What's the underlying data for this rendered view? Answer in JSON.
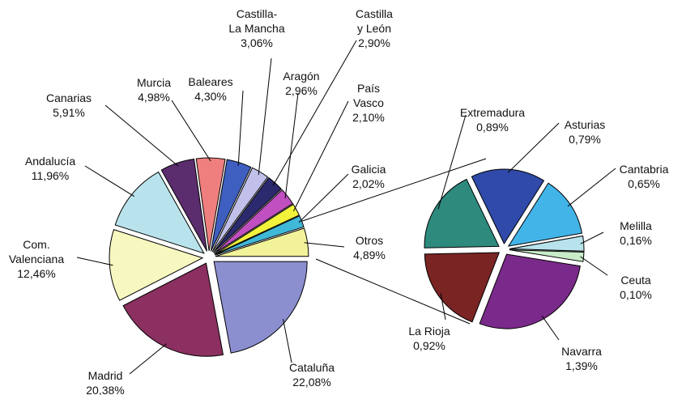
{
  "chart_data": [
    {
      "type": "pie",
      "categories": [
        "Cataluña",
        "Madrid",
        "Com.\nValenciana",
        "Andalucía",
        "Canarias",
        "Murcia",
        "Baleares",
        "Castilla-\nLa Mancha",
        "Castilla\ny León",
        "Aragón",
        "País\nVasco",
        "Galicia",
        "Otros"
      ],
      "values": [
        22.08,
        20.38,
        12.46,
        11.96,
        5.91,
        4.98,
        4.3,
        3.06,
        2.9,
        2.96,
        2.1,
        2.02,
        4.89
      ],
      "value_labels": [
        "22,08%",
        "20,38%",
        "12,46%",
        "11,96%",
        "5,91%",
        "4,98%",
        "4,30%",
        "3,06%",
        "2,90%",
        "2,96%",
        "2,10%",
        "2,02%",
        "4,89%"
      ],
      "colors": [
        "#8b8fd0",
        "#8b3060",
        "#f7f7c0",
        "#b9e3ec",
        "#5c2d6e",
        "#ef7f7f",
        "#3f5fc0",
        "#c0c0ea",
        "#2b2a6e",
        "#c04fc0",
        "#f2f23c",
        "#40b8d8",
        "#f2f29a"
      ]
    },
    {
      "type": "pie",
      "categories": [
        "Asturias",
        "Cantabria",
        "Melilla",
        "Ceuta",
        "Navarra",
        "La Rioja",
        "Extremadura"
      ],
      "values": [
        0.79,
        0.65,
        0.16,
        0.1,
        1.39,
        0.92,
        0.89
      ],
      "value_labels": [
        "0,79%",
        "0,65%",
        "0,16%",
        "0,10%",
        "1,39%",
        "0,92%",
        "0,89%"
      ],
      "colors": [
        "#2f4aa8",
        "#42b4e8",
        "#b8e3ec",
        "#c8ecc8",
        "#7a2a8a",
        "#7a2424",
        "#2f8a7e"
      ]
    }
  ]
}
